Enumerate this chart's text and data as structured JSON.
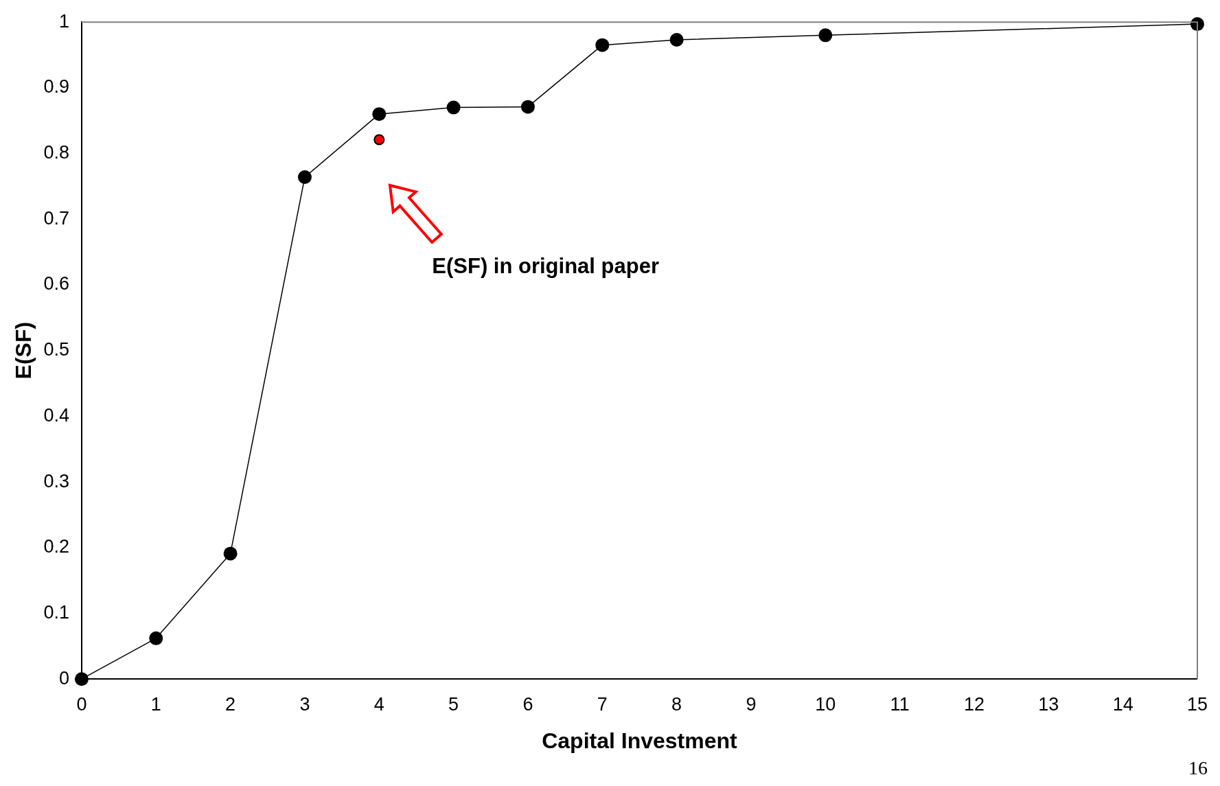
{
  "chart_data": {
    "type": "line",
    "xlabel": "Capital Investment",
    "ylabel": "E(SF)",
    "xlim": [
      0,
      15
    ],
    "xticks": [
      0,
      1,
      2,
      3,
      4,
      5,
      6,
      7,
      8,
      9,
      10,
      11,
      12,
      13,
      14,
      15
    ],
    "ylim": [
      0,
      1
    ],
    "yticks": [
      0,
      0.1,
      0.2,
      0.3,
      0.4,
      0.5,
      0.6,
      0.7,
      0.8,
      0.9,
      1
    ],
    "grid": false,
    "legend": false,
    "marker": "circle",
    "line_style": "solid",
    "series": [
      {
        "color": "#000000",
        "x": [
          0,
          1,
          2,
          3,
          4,
          5,
          6,
          7,
          8,
          10,
          15
        ],
        "values": [
          0,
          0.062,
          0.191,
          0.764,
          0.86,
          0.87,
          0.871,
          0.965,
          0.973,
          0.98,
          0.997
        ]
      },
      {
        "type": "scatter",
        "color": "#ff0000",
        "x": [
          4
        ],
        "values": [
          0.821
        ]
      }
    ],
    "annotations": [
      "E(SF) in original paper",
      "16"
    ]
  }
}
